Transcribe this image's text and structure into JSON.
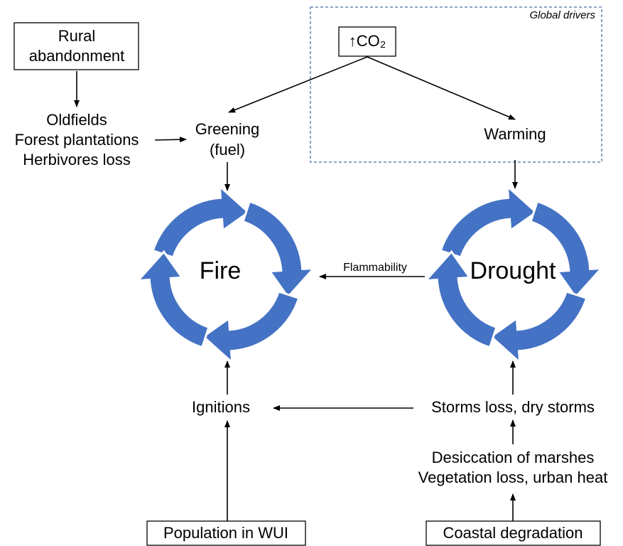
{
  "global_drivers_label": "Global drivers",
  "nodes": {
    "rural": {
      "lines": [
        "Rural",
        "abandonment"
      ]
    },
    "land_use": {
      "lines": [
        "Oldfields",
        "Forest plantations",
        "Herbivores loss"
      ]
    },
    "co2": {
      "label": "↑CO₂"
    },
    "greening": {
      "lines": [
        "Greening",
        "(fuel)"
      ]
    },
    "warming": {
      "label": "Warming"
    },
    "fire": {
      "label": "Fire"
    },
    "drought": {
      "label": "Drought"
    },
    "ignitions": {
      "label": "Ignitions"
    },
    "storms": {
      "label": "Storms loss, dry storms"
    },
    "desiccation": {
      "lines": [
        "Desiccation of marshes",
        "Vegetation loss, urban heat"
      ]
    },
    "population": {
      "label": "Population in WUI"
    },
    "coastal": {
      "label": "Coastal degradation"
    }
  },
  "edges": {
    "flammability": {
      "label": "Flammability"
    }
  }
}
